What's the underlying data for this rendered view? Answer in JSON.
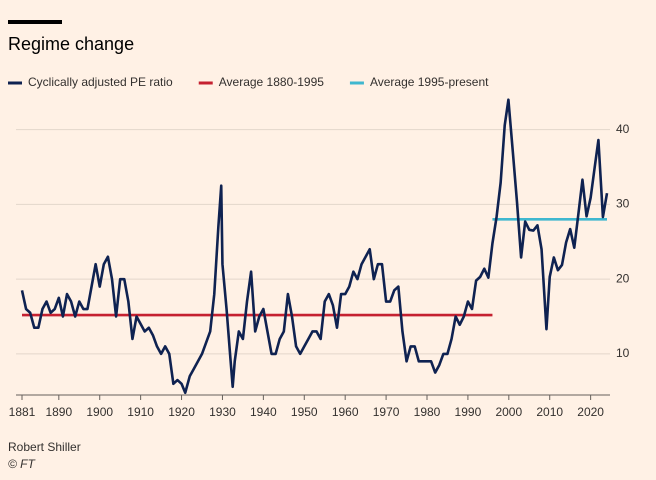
{
  "chart_data": {
    "type": "line",
    "title": "Regime change",
    "source": "Robert Shiller",
    "credit": "© FT",
    "xlim": [
      1881,
      2024
    ],
    "ylim": [
      4.5,
      44.5
    ],
    "xticks": [
      1881,
      1890,
      1900,
      1910,
      1920,
      1930,
      1940,
      1950,
      1960,
      1970,
      1980,
      1990,
      2000,
      2010,
      2020
    ],
    "yticks": [
      10,
      20,
      30,
      40
    ],
    "grid": true,
    "series": [
      {
        "name": "Cyclically adjusted PE ratio",
        "color": "#0f2251",
        "x": [
          1881,
          1882,
          1883,
          1884,
          1885,
          1886,
          1887,
          1888,
          1889,
          1890,
          1891,
          1892,
          1893,
          1894,
          1895,
          1896,
          1897,
          1898,
          1899,
          1900,
          1901,
          1902,
          1903,
          1904,
          1905,
          1906,
          1907,
          1908,
          1909,
          1910,
          1911,
          1912,
          1913,
          1914,
          1915,
          1916,
          1917,
          1918,
          1919,
          1920,
          1920.9,
          1922,
          1923,
          1924,
          1925,
          1926,
          1927,
          1928,
          1929,
          1929.7,
          1930,
          1931,
          1932,
          1932.5,
          1933,
          1934,
          1935,
          1936,
          1937,
          1938,
          1939,
          1940,
          1941,
          1942,
          1943,
          1944,
          1945,
          1946,
          1947,
          1948,
          1949,
          1950,
          1951,
          1952,
          1953,
          1954,
          1955,
          1956,
          1957,
          1958,
          1959,
          1960,
          1961,
          1962,
          1963,
          1964,
          1965,
          1966,
          1967,
          1968,
          1969,
          1970,
          1971,
          1972,
          1973,
          1974,
          1975,
          1976,
          1977,
          1978,
          1979,
          1980,
          1981,
          1982,
          1983,
          1984,
          1985,
          1986,
          1987,
          1988,
          1989,
          1990,
          1991,
          1992,
          1993,
          1994,
          1995,
          1996,
          1997,
          1998,
          1999,
          1999.9,
          2001,
          2002,
          2003,
          2004,
          2005,
          2006,
          2007,
          2008,
          2009.2,
          2010,
          2011,
          2012,
          2013,
          2014,
          2015,
          2016,
          2017,
          2018,
          2019,
          2020,
          2021,
          2021.9,
          2023,
          2024
        ],
        "values": [
          18.5,
          16,
          15.5,
          13.5,
          13.5,
          16,
          17,
          15.5,
          16,
          17.5,
          15,
          18,
          17,
          15,
          17,
          16,
          16,
          19,
          22,
          19,
          22,
          23,
          20,
          15,
          20,
          20,
          17,
          12,
          15,
          14,
          13,
          13.5,
          12.5,
          11,
          10,
          11,
          10,
          6,
          6.5,
          6,
          4.8,
          7,
          8,
          9,
          10,
          11.5,
          13,
          18,
          27,
          32.5,
          22,
          16,
          9,
          5.6,
          9,
          13,
          12,
          17,
          21,
          13,
          15,
          16,
          13,
          10,
          10,
          12,
          13,
          18,
          15,
          11,
          10,
          11,
          12,
          13,
          13,
          12,
          17,
          18,
          16.5,
          13.5,
          18,
          18,
          19,
          21,
          20,
          22,
          23,
          24,
          20,
          22,
          22,
          17,
          17,
          18.5,
          19,
          13,
          9,
          11,
          11,
          9,
          9,
          9,
          9,
          7.5,
          8.5,
          10,
          10,
          12,
          15,
          13.9,
          15,
          17,
          16,
          19.8,
          20.3,
          21.4,
          20.2,
          24.8,
          28.3,
          32.9,
          40.6,
          44,
          36.9,
          30.3,
          22.9,
          27.7,
          26.6,
          26.5,
          27.2,
          24,
          13.3,
          20.3,
          22.9,
          21.2,
          21.9,
          24.9,
          26.7,
          24.2,
          28.7,
          33.3,
          28.4,
          30.9,
          35,
          38.6,
          28.3,
          31.5
        ]
      },
      {
        "name": "Average 1880-1995",
        "color": "#c52130",
        "x": [
          1881,
          1996
        ],
        "values": [
          15.2,
          15.2
        ]
      },
      {
        "name": "Average 1995-present",
        "color": "#3fb7cf",
        "x": [
          1996,
          2024
        ],
        "values": [
          28,
          28
        ]
      }
    ]
  }
}
